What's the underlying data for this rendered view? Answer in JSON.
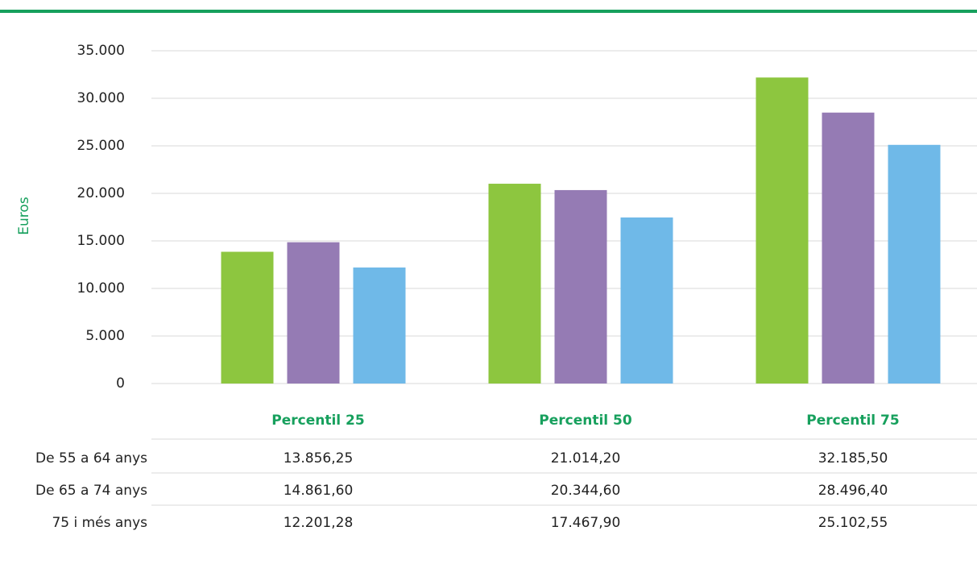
{
  "chart_data": {
    "type": "bar",
    "ylabel": "Euros",
    "categories": [
      "Percentil 25",
      "Percentil 50",
      "Percentil 75"
    ],
    "series": [
      {
        "name": "De 55 a 64 anys",
        "color": "#8dc63f",
        "values": [
          13856.25,
          21014.2,
          32185.5
        ],
        "value_labels": [
          "13.856,25",
          "21.014,20",
          "32.185,50"
        ]
      },
      {
        "name": "De 65 a 74 anys",
        "color": "#957bb4",
        "values": [
          14861.6,
          20344.6,
          28496.4
        ],
        "value_labels": [
          "14.861,60",
          "20.344,60",
          "28.496,40"
        ]
      },
      {
        "name": "75 i més anys",
        "color": "#6fb9e8",
        "values": [
          12201.28,
          17467.9,
          25102.55
        ],
        "value_labels": [
          "12.201,28",
          "17.467,90",
          "25.102,55"
        ]
      }
    ],
    "ylim": [
      0,
      35000
    ],
    "yticks": [
      0,
      {
        "value": 5000,
        "label": "5.000"
      },
      {
        "value": 10000,
        "label": "10.000"
      },
      {
        "value": 15000,
        "label": "15.000"
      },
      {
        "value": 20000,
        "label": "20.000"
      },
      {
        "value": 25000,
        "label": "25.000"
      },
      {
        "value": 30000,
        "label": "30.000"
      },
      {
        "value": 35000,
        "label": "35.000"
      }
    ],
    "grid": true
  }
}
